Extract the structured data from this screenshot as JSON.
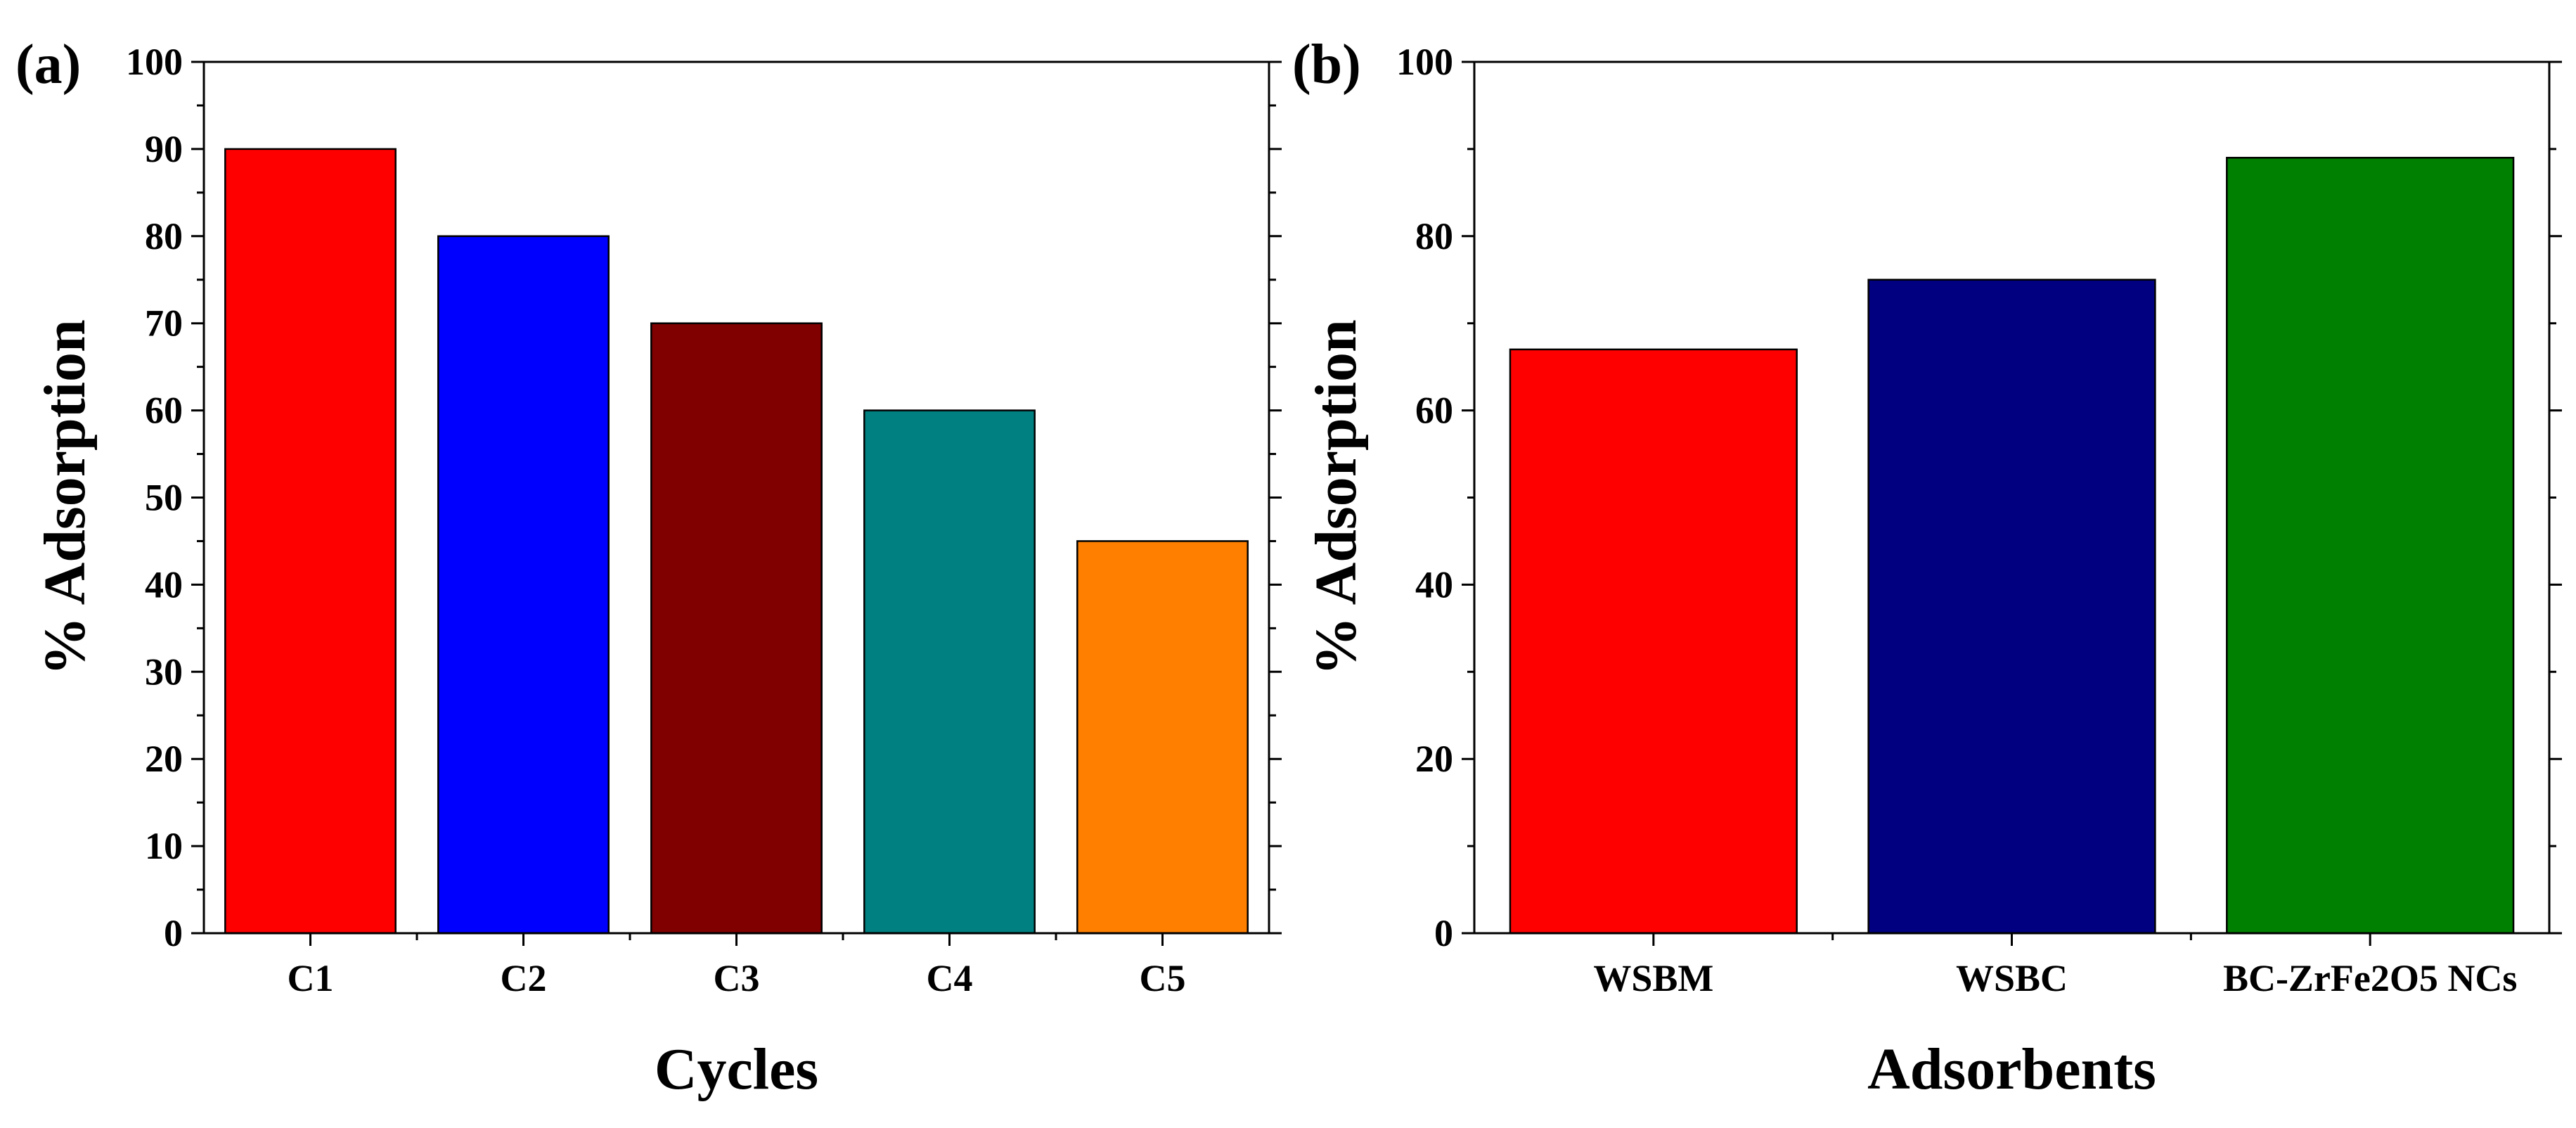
{
  "chart_data": [
    {
      "panel_label": "(a)",
      "type": "bar",
      "title": "",
      "xlabel": "Cycles",
      "ylabel": "% Adsorption",
      "categories": [
        "C1",
        "C2",
        "C3",
        "C4",
        "C5"
      ],
      "values": [
        90,
        80,
        70,
        60,
        45
      ],
      "colors": [
        "#ff0000",
        "#0000ff",
        "#800000",
        "#008080",
        "#ff8000"
      ],
      "ylim": [
        0,
        100
      ],
      "yticks": [
        0,
        10,
        20,
        30,
        40,
        50,
        60,
        70,
        80,
        90,
        100
      ],
      "ytick_labels": [
        "0",
        "10",
        "20",
        "30",
        "40",
        "50",
        "60",
        "70",
        "80",
        "90",
        "100"
      ],
      "grid": false,
      "legend": "none"
    },
    {
      "panel_label": "(b)",
      "type": "bar",
      "title": "",
      "xlabel": "Adsorbents",
      "ylabel": "% Adsorption",
      "categories": [
        "WSBM",
        "WSBC",
        "BC-ZrFe2O5 NCs"
      ],
      "values": [
        67,
        75,
        89
      ],
      "colors": [
        "#ff0000",
        "#000080",
        "#008000"
      ],
      "ylim": [
        0,
        100
      ],
      "yticks": [
        0,
        20,
        40,
        60,
        80,
        100
      ],
      "ytick_labels": [
        "0",
        "20",
        "40",
        "60",
        "80",
        "100"
      ],
      "grid": false,
      "legend": "none"
    }
  ]
}
